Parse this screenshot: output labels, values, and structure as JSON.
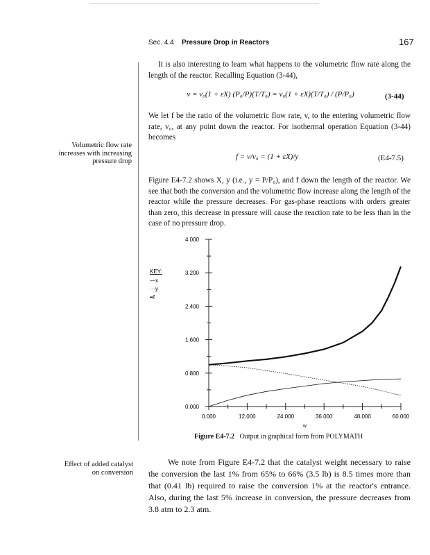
{
  "header": {
    "section": "Sec. 4.4",
    "title": "Pressure Drop in Reactors",
    "page": "167"
  },
  "para1": "It is also interesting to learn what happens to the volumetric flow rate along the length of the reactor. Recalling Equation (3-44),",
  "eq1": {
    "text": "v = v₀(1 + εX) (P₀/P)(T/T₀) = v₀(1 + εX)(T/T₀) / (P/P₀)",
    "number": "(3-44)"
  },
  "para2": "We let f be the ratio of the volumetric flow rate, v, to the entering volumetric flow rate, v₀, at any point down the reactor. For isothermal operation Equation (3-44) becomes",
  "eq2": {
    "text": "f = v/v₀ = (1 + εX)/y",
    "number": "(E4-7.5)"
  },
  "para3": "Figure E4-7.2 shows X, y (i.e., y = P/P₀), and f down the length of the reactor. We see that both the conversion and the volumetric flow increase along the length of the reactor while the pressure decreases. For gas-phase reactions with orders greater than zero, this decrease in pressure will cause the reaction rate to be less than in the case of no pressure drop.",
  "margin_note1": "Volumetric flow rate increases with increasing pressure drop",
  "margin_note2": "Effect of added catalyst on conversion",
  "caption": {
    "label": "Figure E4-7.2",
    "text": "Output in graphical form from POLYMATH"
  },
  "para4": "We note from Figure E4-7.2 that the catalyst weight necessary to raise the conversion the last 1% from 65% to 66% (3.5 lb) is 8.5 times more than that (0.41 lb) required to raise the conversion 1% at the reactor's entrance. Also, during the last 5% increase in conversion, the pressure decreases from 3.8 atm to 2.3 atm.",
  "chart_data": {
    "type": "line",
    "xlabel": "W",
    "ylabel": "",
    "xlim": [
      0,
      60
    ],
    "ylim": [
      0,
      4
    ],
    "xticks": [
      "0.000",
      "12.000",
      "24.000",
      "36.000",
      "48.000",
      "60.000"
    ],
    "yticks": [
      "0.000",
      "0.800",
      "1.600",
      "2.400",
      "3.200",
      "4.000"
    ],
    "legend": {
      "title": "KEY:",
      "placement": "left",
      "entries": [
        "—x",
        "···y",
        "━f"
      ]
    },
    "grid": false,
    "x": [
      0,
      6,
      12,
      18,
      24,
      30,
      36,
      42,
      48,
      51,
      54,
      56,
      58,
      60
    ],
    "series": [
      {
        "name": "x",
        "style": "thin",
        "values": [
          0,
          0.15,
          0.27,
          0.36,
          0.43,
          0.49,
          0.55,
          0.59,
          0.62,
          0.635,
          0.645,
          0.652,
          0.658,
          0.66
        ]
      },
      {
        "name": "y",
        "style": "dotted",
        "values": [
          1.0,
          0.97,
          0.93,
          0.86,
          0.79,
          0.71,
          0.63,
          0.56,
          0.48,
          0.43,
          0.38,
          0.34,
          0.3,
          0.27
        ]
      },
      {
        "name": "f",
        "style": "thick",
        "values": [
          1.0,
          1.04,
          1.09,
          1.13,
          1.19,
          1.27,
          1.37,
          1.53,
          1.8,
          2.0,
          2.3,
          2.6,
          2.95,
          3.35
        ]
      }
    ]
  }
}
